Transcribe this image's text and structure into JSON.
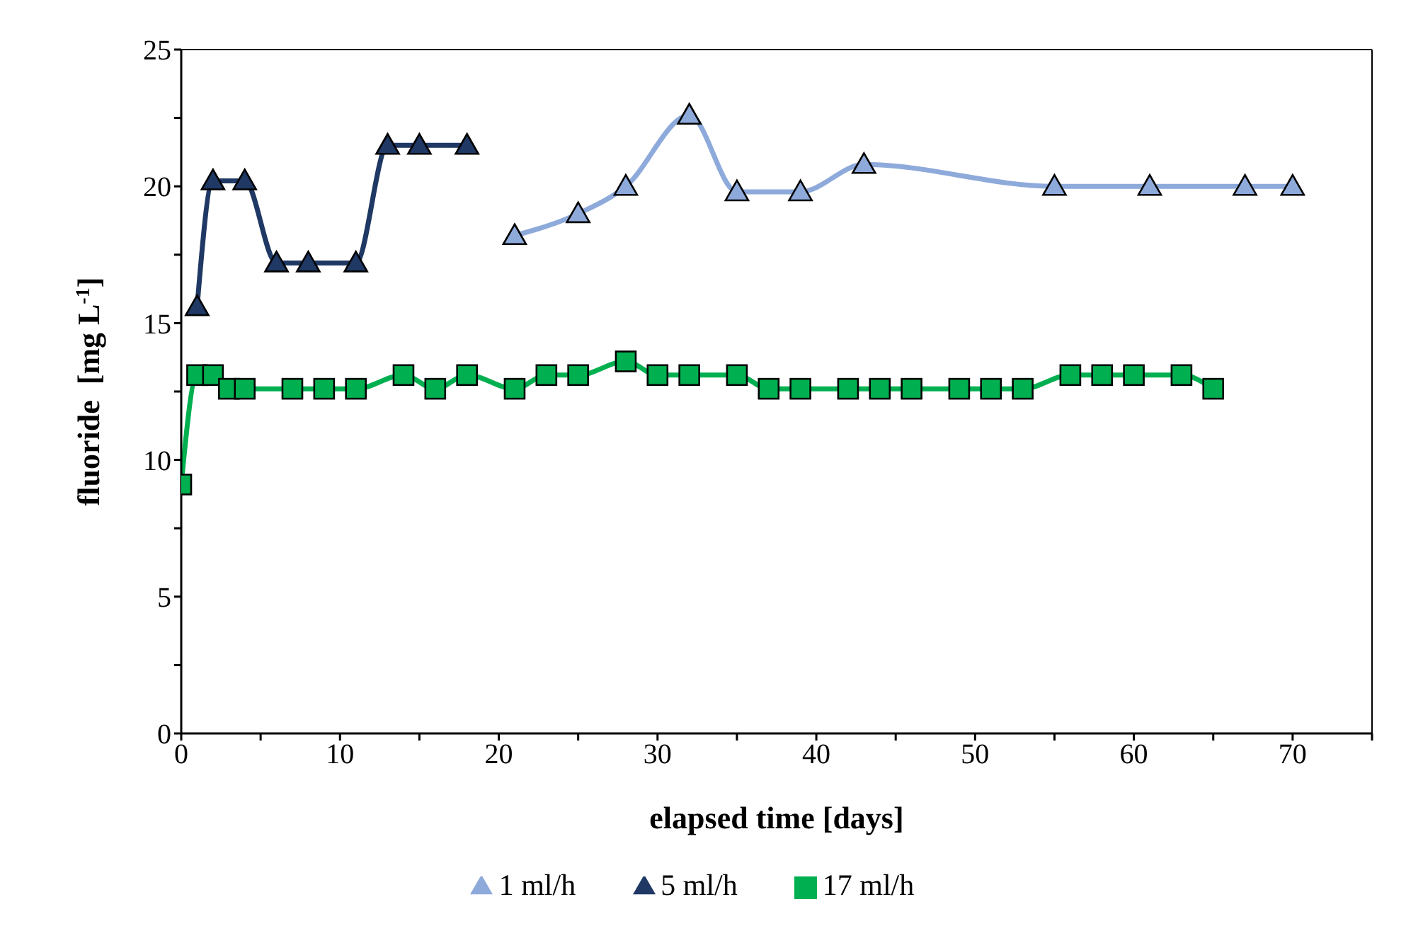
{
  "chart_data": {
    "type": "line",
    "xlabel": "elapsed time [days]",
    "ylabel": "fluoride  [mg L$^{-1}$]",
    "xlim": [
      0,
      75
    ],
    "xticks": [
      0,
      {
        "value": 5,
        "label": null
      },
      10,
      {
        "value": 15,
        "label": null
      },
      20,
      {
        "value": 25,
        "label": null
      },
      30,
      {
        "value": 35,
        "label": null
      },
      40,
      {
        "value": 45,
        "label": null
      },
      50,
      {
        "value": 55,
        "label": null
      },
      60,
      {
        "value": 65,
        "label": null
      },
      70,
      {
        "value": 75,
        "label": null
      }
    ],
    "ylim": [
      0,
      25
    ],
    "yticks": [
      0,
      {
        "value": 2.5,
        "label": null
      },
      5,
      {
        "value": 7.5,
        "label": null
      },
      10,
      {
        "value": 12.5,
        "label": null
      },
      15,
      {
        "value": 17.5,
        "label": null
      },
      20,
      {
        "value": 22.5,
        "label": null
      },
      25
    ],
    "legend": "bottom",
    "line_style": "solid",
    "series": [
      {
        "name": "1 ml/h",
        "color": "#8eaadb",
        "marker": "triangle",
        "x": [
          21,
          25,
          28,
          32,
          35,
          39,
          43,
          55,
          61,
          67,
          70
        ],
        "values": [
          18.2,
          19.0,
          20.0,
          22.6,
          19.8,
          19.8,
          20.8,
          20.0,
          20.0,
          20.0,
          20.0
        ]
      },
      {
        "name": "5 ml/h",
        "color": "#1f3864",
        "marker": "triangle",
        "x": [
          1,
          2,
          4,
          6,
          8,
          11,
          13,
          15,
          18
        ],
        "values": [
          15.6,
          20.2,
          20.2,
          17.2,
          17.2,
          17.2,
          21.5,
          21.5,
          21.5
        ]
      },
      {
        "name": "17 ml/h",
        "color": "#00b050",
        "marker": "square",
        "x": [
          0,
          1,
          2,
          3,
          4,
          7,
          9,
          11,
          14,
          16,
          18,
          21,
          23,
          25,
          28,
          30,
          32,
          35,
          37,
          39,
          42,
          44,
          46,
          49,
          51,
          53,
          56,
          58,
          60,
          63,
          65
        ],
        "values": [
          9.1,
          13.1,
          13.1,
          12.6,
          12.6,
          12.6,
          12.6,
          12.6,
          13.1,
          12.6,
          13.1,
          12.6,
          13.1,
          13.1,
          13.6,
          13.1,
          13.1,
          13.1,
          12.6,
          12.6,
          12.6,
          12.6,
          12.6,
          12.6,
          12.6,
          12.6,
          13.1,
          13.1,
          13.1,
          13.1,
          12.6
        ]
      }
    ]
  }
}
